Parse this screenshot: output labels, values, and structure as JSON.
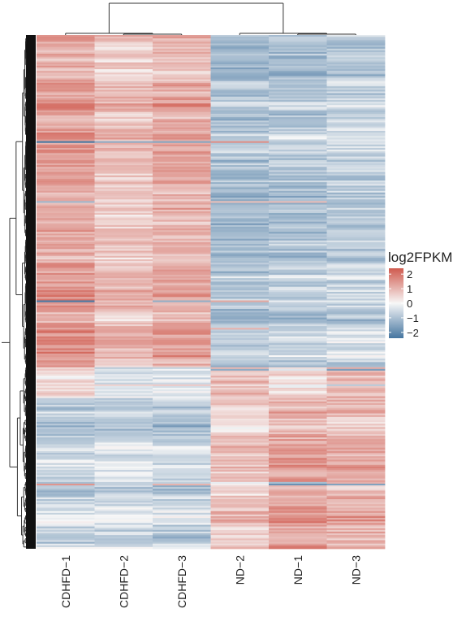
{
  "chart_data": {
    "type": "heatmap",
    "columns": [
      "CDHFD−1",
      "CDHFD−2",
      "CDHFD−3",
      "ND−2",
      "ND−1",
      "ND−3"
    ],
    "value_scale": {
      "min": -2.4,
      "max": 2.4
    },
    "colors": {
      "low": "#4575a0",
      "mid": "#f7f7f7",
      "high": "#d05a4e"
    },
    "legend": {
      "title": "log2FPKM",
      "ticks": [
        {
          "value": 2,
          "label": "2"
        },
        {
          "value": 1,
          "label": "1"
        },
        {
          "value": 0,
          "label": "0"
        },
        {
          "value": -1,
          "label": "−1"
        },
        {
          "value": -2,
          "label": "−2"
        }
      ]
    },
    "row_dendrogram": true,
    "column_dendrogram": true,
    "row_blocks": [
      {
        "frac": 0.645,
        "means": [
          1.3,
          0.8,
          1.1,
          -1.0,
          -0.9,
          -0.7
        ]
      },
      {
        "frac": 0.06,
        "means": [
          0.4,
          -0.3,
          -0.3,
          0.9,
          0.4,
          0.9
        ]
      },
      {
        "frac": 0.295,
        "means": [
          -0.7,
          -0.6,
          -0.7,
          0.6,
          1.2,
          1.0
        ]
      }
    ]
  }
}
